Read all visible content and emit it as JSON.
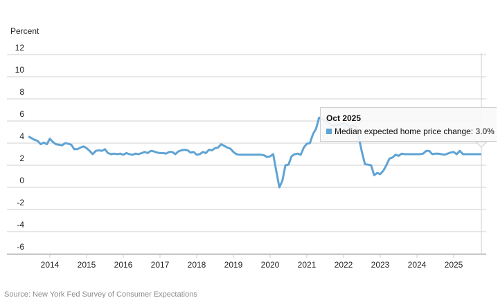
{
  "chart_data": {
    "type": "line",
    "title": "",
    "ylabel": "Percent",
    "xlabel": "",
    "ylim": [
      -6,
      12
    ],
    "yticks": [
      12,
      10,
      8,
      6,
      4,
      2,
      0,
      -2,
      -4,
      -6
    ],
    "xticks": [
      "2014",
      "2015",
      "2016",
      "2017",
      "2018",
      "2019",
      "2020",
      "2021",
      "2022",
      "2023",
      "2024",
      "2025"
    ],
    "grid": true,
    "frequency": "monthly",
    "start_month": "2013-06",
    "end_month": "2025-10",
    "series": [
      {
        "name": "Median expected home price change",
        "color": "#5fa3d4",
        "values": [
          4.6,
          4.45,
          4.3,
          4.2,
          3.9,
          4.05,
          3.9,
          4.4,
          4.1,
          3.9,
          3.85,
          3.8,
          4.0,
          3.95,
          3.85,
          3.45,
          3.45,
          3.6,
          3.7,
          3.55,
          3.3,
          3.0,
          3.3,
          3.35,
          3.3,
          3.45,
          3.1,
          3.0,
          3.05,
          3.0,
          3.05,
          2.95,
          3.1,
          3.0,
          2.95,
          3.05,
          3.0,
          3.1,
          3.2,
          3.1,
          3.3,
          3.25,
          3.15,
          3.1,
          3.1,
          3.05,
          3.2,
          3.2,
          3.0,
          3.25,
          3.35,
          3.4,
          3.35,
          3.15,
          3.2,
          2.95,
          3.0,
          3.2,
          3.1,
          3.4,
          3.35,
          3.55,
          3.6,
          3.9,
          3.75,
          3.6,
          3.5,
          3.2,
          3.0,
          2.95,
          2.95,
          2.95,
          2.95,
          2.95,
          2.95,
          2.95,
          2.95,
          2.9,
          2.75,
          2.8,
          3.0,
          1.5,
          0.0,
          0.6,
          2.0,
          2.05,
          2.8,
          3.0,
          3.05,
          2.95,
          3.6,
          3.95,
          4.0,
          4.8,
          5.3,
          6.3,
          6.2,
          6.0,
          5.9,
          5.6,
          5.6,
          5.6,
          5.7,
          5.8,
          5.7,
          5.4,
          5.6,
          5.5,
          4.5,
          3.2,
          2.1,
          2.05,
          2.0,
          1.1,
          1.3,
          1.2,
          1.5,
          2.0,
          2.6,
          2.7,
          2.95,
          2.85,
          3.05,
          3.0,
          3.0,
          3.0,
          3.0,
          3.0,
          3.0,
          3.05,
          3.3,
          3.3,
          3.0,
          3.05,
          3.05,
          3.0,
          2.95,
          3.05,
          3.15,
          3.2,
          3.0,
          3.3,
          3.0,
          3.0,
          3.0,
          3.0,
          3.0,
          3.0,
          3.0
        ]
      }
    ],
    "tooltip": {
      "title": "Oct 2025",
      "label": "Median expected home price change: 3.0%"
    },
    "source": "Source: New York Fed Survey of Consumer Expectations"
  }
}
